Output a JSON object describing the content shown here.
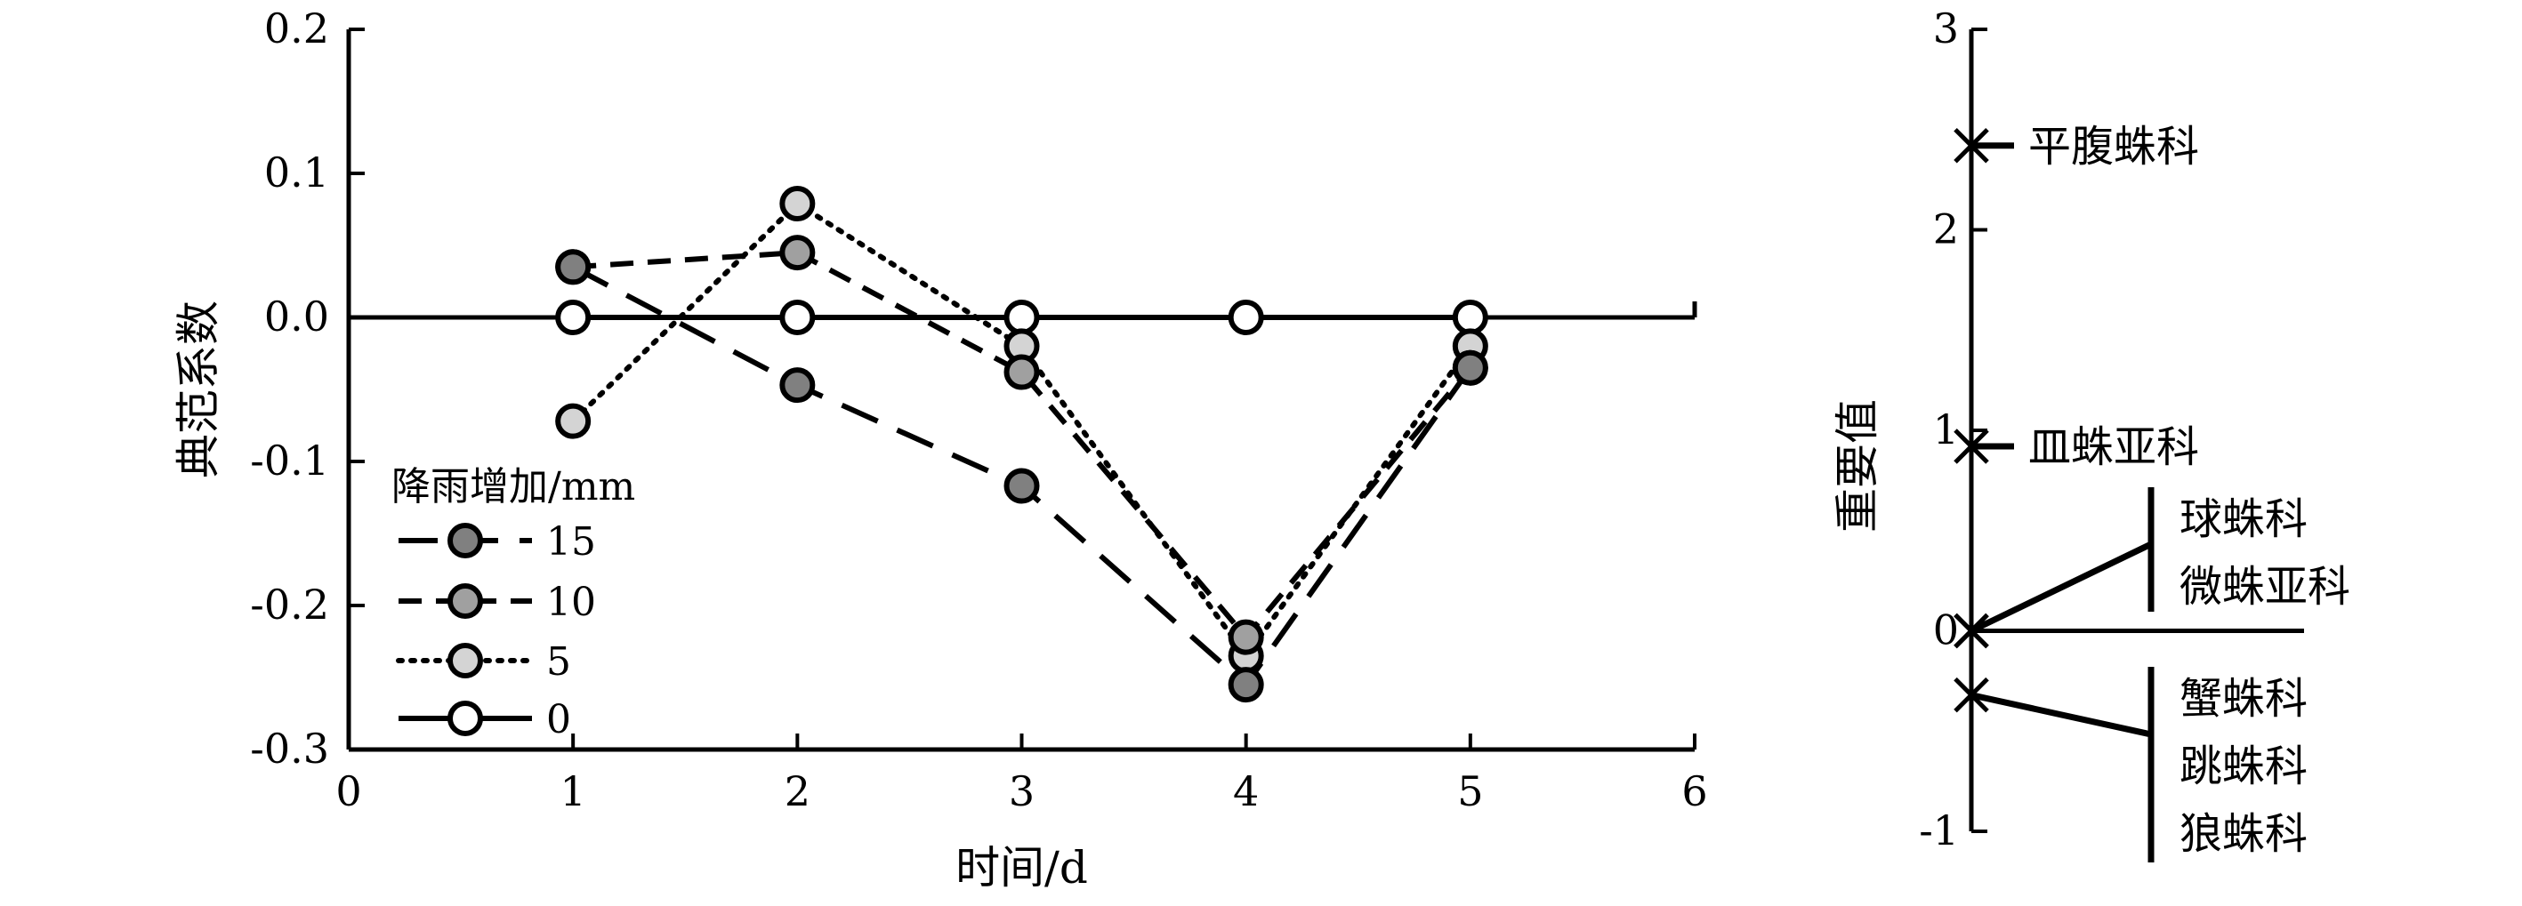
{
  "chart_data": [
    {
      "type": "line",
      "xlabel": "时间/d",
      "ylabel": "典范系数",
      "xlim": [
        0,
        6
      ],
      "ylim": [
        -0.3,
        0.2
      ],
      "xticks": [
        "0",
        "1",
        "2",
        "3",
        "4",
        "5",
        "6"
      ],
      "yticks": [
        "-0.3",
        "-0.2",
        "-0.1",
        "0.0",
        "0.1",
        "0.2"
      ],
      "reference_line": 0,
      "legend": {
        "title": "降雨增加/mm",
        "placement": "lower-left"
      },
      "series": [
        {
          "name": "15",
          "line_style": "long-dash",
          "marker_fill": "#808080",
          "x": [
            1,
            2,
            3,
            4,
            5
          ],
          "values": [
            0.035,
            -0.047,
            -0.117,
            -0.255,
            -0.035
          ]
        },
        {
          "name": "10",
          "line_style": "dash",
          "marker_fill": "#a0a0a0",
          "x": [
            1,
            2,
            3,
            4,
            5
          ],
          "values": [
            0.035,
            0.045,
            -0.038,
            -0.222,
            -0.035
          ]
        },
        {
          "name": "5",
          "line_style": "dotted",
          "marker_fill": "#d4d4d4",
          "x": [
            1,
            2,
            3,
            4,
            5
          ],
          "values": [
            -0.072,
            0.079,
            -0.02,
            -0.235,
            -0.02
          ]
        },
        {
          "name": "0",
          "line_style": "solid",
          "marker_fill": "#ffffff",
          "x": [
            1,
            2,
            3,
            4,
            5
          ],
          "values": [
            0.0,
            0.0,
            0.0,
            0.0,
            0.0
          ]
        }
      ]
    },
    {
      "type": "scatter",
      "ylabel": "重要值",
      "ylim": [
        -1,
        3
      ],
      "yticks": [
        "-1",
        "0",
        "1",
        "2",
        "3"
      ],
      "points": [
        {
          "label": "平腹蛛科",
          "value": 2.42
        },
        {
          "label": "皿蛛亚科",
          "value": 0.92
        },
        {
          "label": "球蛛科",
          "value": 0.0,
          "group": 1
        },
        {
          "label": "微蛛亚科",
          "value": 0.0,
          "group": 1
        },
        {
          "label": "蟹蛛科",
          "value": -0.32,
          "group": 2
        },
        {
          "label": "跳蛛科",
          "value": -0.32,
          "group": 2
        },
        {
          "label": "狼蛛科",
          "value": -0.32,
          "group": 2
        }
      ]
    }
  ]
}
